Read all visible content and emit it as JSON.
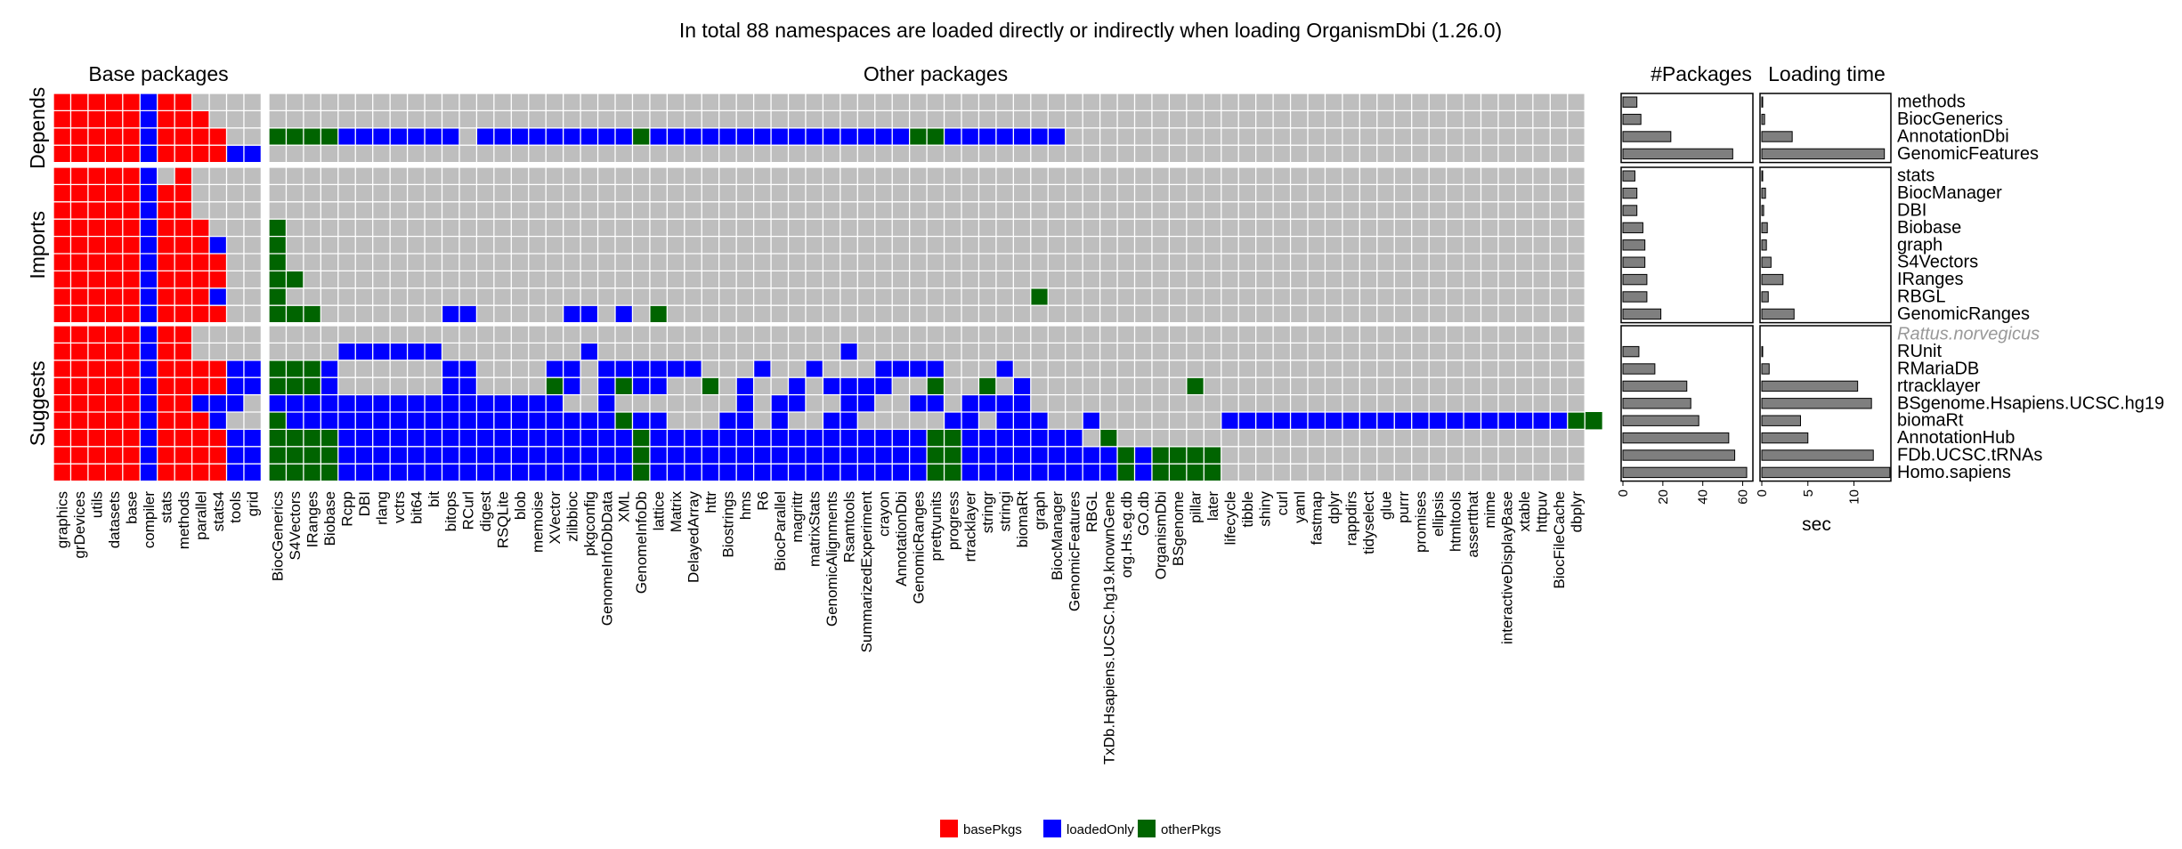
{
  "chart_data": {
    "type": "heatmap",
    "title": "In total 88 namespaces are loaded directly or indirectly when loading OrganismDbi (1.26.0)",
    "panel_titles": {
      "base": "Base packages",
      "other": "Other packages",
      "packages": "#Packages",
      "loading": "Loading time"
    },
    "facets": [
      "Depends",
      "Imports",
      "Suggests"
    ],
    "base_columns": [
      "graphics",
      "grDevices",
      "utils",
      "datasets",
      "base",
      "compiler",
      "stats",
      "methods",
      "parallel",
      "stats4",
      "tools",
      "grid"
    ],
    "other_columns": [
      "BiocGenerics",
      "S4Vectors",
      "IRanges",
      "Biobase",
      "Rcpp",
      "DBI",
      "rlang",
      "vctrs",
      "bit64",
      "bit",
      "bitops",
      "RCurl",
      "digest",
      "RSQLite",
      "blob",
      "memoise",
      "XVector",
      "zlibbioc",
      "pkgconfig",
      "GenomeInfoDbData",
      "XML",
      "GenomeInfoDb",
      "lattice",
      "Matrix",
      "DelayedArray",
      "httr",
      "Biostrings",
      "hms",
      "R6",
      "BiocParallel",
      "magrittr",
      "matrixStats",
      "GenomicAlignments",
      "Rsamtools",
      "SummarizedExperiment",
      "crayon",
      "AnnotationDbi",
      "GenomicRanges",
      "prettyunits",
      "progress",
      "rtracklayer",
      "stringr",
      "stringi",
      "biomaRt",
      "graph",
      "BiocManager",
      "GenomicFeatures",
      "RBGL",
      "TxDb.Hsapiens.UCSC.hg19.knownGene",
      "org.Hs.eg.db",
      "GO.db",
      "OrganismDbi",
      "BSgenome",
      "pillar",
      "later",
      "lifecycle",
      "tibble",
      "shiny",
      "curl",
      "yaml",
      "fastmap",
      "dplyr",
      "rappdirs",
      "tidyselect",
      "glue",
      "purrr",
      "promises",
      "ellipsis",
      "htmltools",
      "assertthat",
      "mime",
      "interactiveDisplayBase",
      "xtable",
      "httpuv",
      "BiocFileCache",
      "dbplyr"
    ],
    "rows": [
      {
        "facet": "Depends",
        "name": "methods",
        "italic": false,
        "npkgs": 7,
        "load_sec": 0,
        "base": "RRRRRBRR....",
        "other": ""
      },
      {
        "facet": "Depends",
        "name": "BiocGenerics",
        "italic": false,
        "npkgs": 9,
        "load_sec": 0.3,
        "base": "RRRRRBRRR...",
        "other": ""
      },
      {
        "facet": "Depends",
        "name": "AnnotationDbi",
        "italic": false,
        "npkgs": 24,
        "load_sec": 3.3,
        "base": "RRRRRBRRRR..",
        "other": "GGGGBBBBBBB.BBBBBBBBBGBBBBBBBBBBBBBBBGGBBBBBBB"
      },
      {
        "facet": "Depends",
        "name": "GenomicFeatures",
        "italic": false,
        "npkgs": 55,
        "load_sec": 13.3,
        "base": "RRRRRBRRRRBB",
        "other": ""
      },
      {
        "facet": "Imports",
        "name": "stats",
        "italic": false,
        "npkgs": 6,
        "load_sec": 0,
        "base": "RRRRRB.R....",
        "other": ""
      },
      {
        "facet": "Imports",
        "name": "BiocManager",
        "italic": false,
        "npkgs": 7,
        "load_sec": 0.4,
        "base": "RRRRRBRR....",
        "other": ""
      },
      {
        "facet": "Imports",
        "name": "DBI",
        "italic": false,
        "npkgs": 7,
        "load_sec": 0.2,
        "base": "RRRRRBRR....",
        "other": ""
      },
      {
        "facet": "Imports",
        "name": "Biobase",
        "italic": false,
        "npkgs": 10,
        "load_sec": 0.6,
        "base": "RRRRRBRRR...",
        "other": "G"
      },
      {
        "facet": "Imports",
        "name": "graph",
        "italic": false,
        "npkgs": 11,
        "load_sec": 0.5,
        "base": "RRRRRBRRRB..",
        "other": "G"
      },
      {
        "facet": "Imports",
        "name": "S4Vectors",
        "italic": false,
        "npkgs": 11,
        "load_sec": 1.0,
        "base": "RRRRRBRRRR..",
        "other": "G"
      },
      {
        "facet": "Imports",
        "name": "IRanges",
        "italic": false,
        "npkgs": 12,
        "load_sec": 2.3,
        "base": "RRRRRBRRRR..",
        "other": "GG"
      },
      {
        "facet": "Imports",
        "name": "RBGL",
        "italic": false,
        "npkgs": 12,
        "load_sec": 0.7,
        "base": "RRRRRBRRRB..",
        "other": "G...........................................G"
      },
      {
        "facet": "Imports",
        "name": "GenomicRanges",
        "italic": false,
        "npkgs": 19,
        "load_sec": 3.5,
        "base": "RRRRRBRRRR..",
        "other": "GGG.......BB.....BB.B.G"
      },
      {
        "facet": "Suggests",
        "name": "Rattus.norvegicus",
        "italic": true,
        "npkgs": null,
        "load_sec": null,
        "base": "RRRRRBRR....",
        "other": ""
      },
      {
        "facet": "Suggests",
        "name": "RUnit",
        "italic": false,
        "npkgs": 8,
        "load_sec": 0,
        "base": "RRRRRBRR....",
        "other": "....BBBBBB........B..............B"
      },
      {
        "facet": "Suggests",
        "name": "RMariaDB",
        "italic": false,
        "npkgs": 16,
        "load_sec": 0.8,
        "base": "RRRRRBRRRRBB",
        "other": "GGGB......BB....BB.BBBBBB...B..B...BBBB...B"
      },
      {
        "facet": "Suggests",
        "name": "rtracklayer",
        "italic": false,
        "npkgs": 32,
        "load_sec": 10.4,
        "base": "RRRRRBRRRRBB",
        "other": "GGGB......BB....GB.BGBB..G.B..B.BBBB..G..G.B.........G"
      },
      {
        "facet": "Suggests",
        "name": "BSgenome.Hsapiens.UCSC.hg19",
        "italic": false,
        "npkgs": 34,
        "load_sec": 11.9,
        "base": "RRRRRBRRBBB.",
        "other": "BBBBBBBBBBBBBBBBB..B.......B.BB..BB..BB.BBBB"
      },
      {
        "facet": "Suggests",
        "name": "biomaRt",
        "italic": false,
        "npkgs": 38,
        "load_sec": 4.2,
        "base": "RRRRRBRRRB..",
        "other": "GBBBBBBBBBBBBBBBBBBBGBB...BB.B..BB.....BB.BBB..B.......BBBBBBBBBBBBBBBBBBBBGG"
      },
      {
        "facet": "Suggests",
        "name": "AnnotationHub",
        "italic": false,
        "npkgs": 53,
        "load_sec": 5.0,
        "base": "RRRRRBRRRRBB",
        "other": "GGGGBBBBBBBBBBBBBBBBBGBBBBBBBBBBBBBBBBGGBBBBBBB.G"
      },
      {
        "facet": "Suggests",
        "name": "FDb.UCSC.tRNAs",
        "italic": false,
        "npkgs": 56,
        "load_sec": 12.1,
        "base": "RRRRRBRRRRBB",
        "other": "GGGGBBBBBBBBBBBBBBBBBGBBBBBBBBBBBBBBBBGGBBBBBBBBBGBGGGG"
      },
      {
        "facet": "Suggests",
        "name": "Homo.sapiens",
        "italic": false,
        "npkgs": 62,
        "load_sec": 13.9,
        "base": "",
        "other": ""
      }
    ],
    "packages_axis": {
      "ticks": [
        0,
        20,
        40,
        60
      ]
    },
    "loading_axis": {
      "ticks": [
        0,
        5,
        10
      ],
      "xlabel": "sec"
    },
    "legend": [
      {
        "key": "R",
        "label": "basePkgs",
        "color": "#ff0000"
      },
      {
        "key": "B",
        "label": "loadedOnly",
        "color": "#0000ff"
      },
      {
        "key": "G",
        "label": "otherPkgs",
        "color": "#006400"
      }
    ],
    "legend_position": "bottom",
    "grid": true
  }
}
